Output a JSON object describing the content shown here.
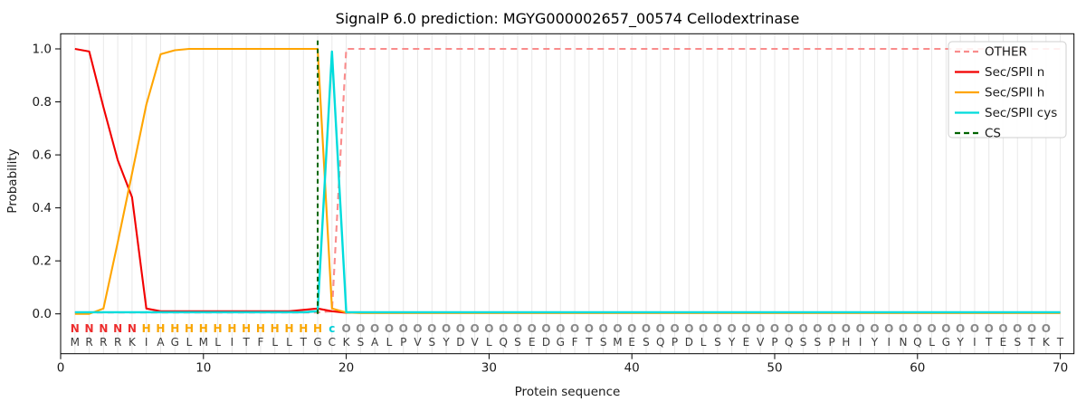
{
  "title": "SignalP 6.0 prediction: MGYG000002657_00574 Cellodextrinase",
  "axes": {
    "xlabel": "Protein sequence",
    "ylabel": "Probability",
    "xticks": [
      0,
      10,
      20,
      30,
      40,
      50,
      60,
      70
    ],
    "yticks": [
      "0.0",
      "0.2",
      "0.4",
      "0.6",
      "0.8",
      "1.0"
    ]
  },
  "sequence": {
    "residues": "MRRRKIAGLMLITFLLTGCKSALPVSYDVLQSEDGFTSMESQPDLSYEVPQSSPHIYINQLGYITESTKT",
    "annotations": "NNNNNHHHHHHHHHHHHHcOOOOOOOOOOOOOOOOOOOOOOOOOOOOOOOOOOOOOOOOOOOOOOOOOO",
    "annotation_colors": {
      "N": "#ED2D2D",
      "H": "#F9A602",
      "c": "#00CFD8",
      "O": "#8A8A8A"
    },
    "residue_color": "#3A3A3A"
  },
  "chart_data": {
    "type": "line",
    "title": "SignalP 6.0 prediction: MGYG000002657_00574 Cellodextrinase",
    "xlabel": "Protein sequence",
    "ylabel": "Probability",
    "x_start": 1,
    "x_range": [
      0,
      71
    ],
    "y_range": [
      -0.15,
      1.057
    ],
    "grid": "vertical-per-residue",
    "legend_position": "upper right",
    "series": [
      {
        "key": "other",
        "label": "OTHER",
        "color": "#F98C8C",
        "style": "dashed",
        "values": [
          0.005,
          0.005,
          0.005,
          0.005,
          0.005,
          0.005,
          0.005,
          0.005,
          0.005,
          0.005,
          0.005,
          0.005,
          0.005,
          0.005,
          0.005,
          0.005,
          0.005,
          0.005,
          0.01,
          1.0,
          1.0,
          1.0,
          1.0,
          1.0,
          1.0,
          1.0,
          1.0,
          1.0,
          1.0,
          1.0,
          1.0,
          1.0,
          1.0,
          1.0,
          1.0,
          1.0,
          1.0,
          1.0,
          1.0,
          1.0,
          1.0,
          1.0,
          1.0,
          1.0,
          1.0,
          1.0,
          1.0,
          1.0,
          1.0,
          1.0,
          1.0,
          1.0,
          1.0,
          1.0,
          1.0,
          1.0,
          1.0,
          1.0,
          1.0,
          1.0,
          1.0,
          1.0,
          1.0,
          1.0,
          1.0,
          1.0,
          1.0,
          1.0,
          1.0,
          1.0
        ]
      },
      {
        "key": "n",
        "label": "Sec/SPII n",
        "color": "#F20000",
        "style": "solid",
        "values": [
          1.0,
          0.99,
          0.78,
          0.58,
          0.44,
          0.02,
          0.01,
          0.01,
          0.01,
          0.01,
          0.01,
          0.01,
          0.01,
          0.01,
          0.01,
          0.01,
          0.015,
          0.02,
          0.01,
          0.004,
          0.004,
          0.004,
          0.004,
          0.004,
          0.004,
          0.004,
          0.004,
          0.004,
          0.004,
          0.004,
          0.004,
          0.004,
          0.004,
          0.004,
          0.004,
          0.004,
          0.004,
          0.004,
          0.004,
          0.004,
          0.004,
          0.004,
          0.004,
          0.004,
          0.004,
          0.004,
          0.004,
          0.004,
          0.004,
          0.004,
          0.004,
          0.004,
          0.004,
          0.004,
          0.004,
          0.004,
          0.004,
          0.004,
          0.004,
          0.004,
          0.004,
          0.004,
          0.004,
          0.004,
          0.004,
          0.004,
          0.004,
          0.004,
          0.004,
          0.004
        ]
      },
      {
        "key": "h",
        "label": "Sec/SPII h",
        "color": "#FFA500",
        "style": "solid",
        "values": [
          0.0,
          0.0,
          0.02,
          0.27,
          0.53,
          0.79,
          0.98,
          0.995,
          1.0,
          1.0,
          1.0,
          1.0,
          1.0,
          1.0,
          1.0,
          1.0,
          1.0,
          1.0,
          0.02,
          0.005,
          0.003,
          0.003,
          0.003,
          0.003,
          0.003,
          0.003,
          0.003,
          0.003,
          0.003,
          0.003,
          0.003,
          0.003,
          0.003,
          0.003,
          0.003,
          0.003,
          0.003,
          0.003,
          0.003,
          0.003,
          0.003,
          0.003,
          0.003,
          0.003,
          0.003,
          0.003,
          0.003,
          0.003,
          0.003,
          0.003,
          0.003,
          0.003,
          0.003,
          0.003,
          0.003,
          0.003,
          0.003,
          0.003,
          0.003,
          0.003,
          0.003,
          0.003,
          0.003,
          0.003,
          0.003,
          0.003,
          0.003,
          0.003,
          0.003,
          0.003
        ]
      },
      {
        "key": "cys",
        "label": "Sec/SPII cys",
        "color": "#00DCDC",
        "style": "solid",
        "values": [
          0.006,
          0.006,
          0.006,
          0.006,
          0.006,
          0.006,
          0.006,
          0.006,
          0.006,
          0.006,
          0.006,
          0.006,
          0.006,
          0.006,
          0.006,
          0.006,
          0.006,
          0.01,
          0.99,
          0.006,
          0.006,
          0.006,
          0.006,
          0.006,
          0.006,
          0.006,
          0.006,
          0.006,
          0.006,
          0.006,
          0.006,
          0.006,
          0.006,
          0.006,
          0.006,
          0.006,
          0.006,
          0.006,
          0.006,
          0.006,
          0.006,
          0.006,
          0.006,
          0.006,
          0.006,
          0.006,
          0.006,
          0.006,
          0.006,
          0.006,
          0.006,
          0.006,
          0.006,
          0.006,
          0.006,
          0.006,
          0.006,
          0.006,
          0.006,
          0.006,
          0.006,
          0.006,
          0.006,
          0.006,
          0.006,
          0.006,
          0.006,
          0.006,
          0.006,
          0.006
        ]
      },
      {
        "key": "cs",
        "label": "CS",
        "color": "#006400",
        "style": "dashed-vline",
        "x": 18
      }
    ]
  },
  "colors": {
    "grid": "#E8E8E8",
    "spine": "#000000",
    "background": "#FFFFFF",
    "text": "#1A1A1A"
  }
}
